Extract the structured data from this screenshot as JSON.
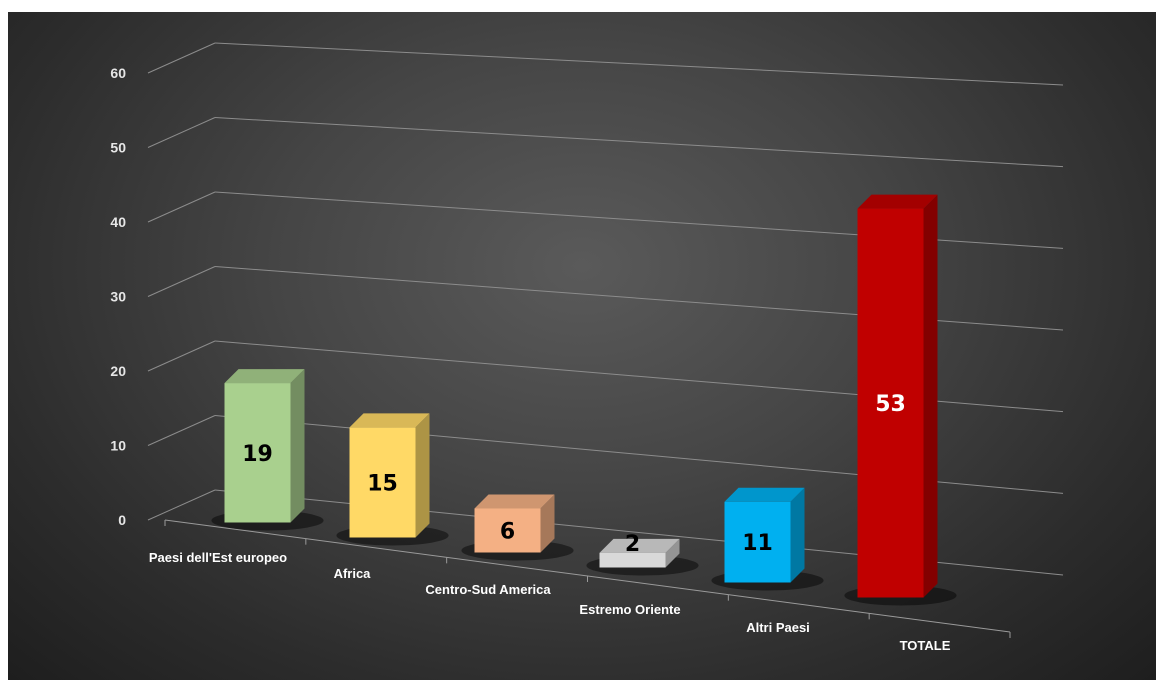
{
  "chart_data": {
    "type": "bar",
    "style": "3d-column",
    "categories": [
      "Paesi dell'Est europeo",
      "Africa",
      "Centro-Sud America",
      "Estremo Oriente",
      "Altri Paesi",
      "TOTALE"
    ],
    "values": [
      19,
      15,
      6,
      2,
      11,
      53
    ],
    "colors": [
      "#a9d08e",
      "#ffd966",
      "#f4b084",
      "#d9d9d9",
      "#00b0f0",
      "#c00000"
    ],
    "label_colors": [
      "#000000",
      "#000000",
      "#000000",
      "#000000",
      "#000000",
      "#ffffff"
    ],
    "ylim": [
      0,
      60
    ],
    "yticks": [
      0,
      10,
      20,
      30,
      40,
      50,
      60
    ],
    "grid": true,
    "legend": "none",
    "background": "#3a3a3a"
  }
}
